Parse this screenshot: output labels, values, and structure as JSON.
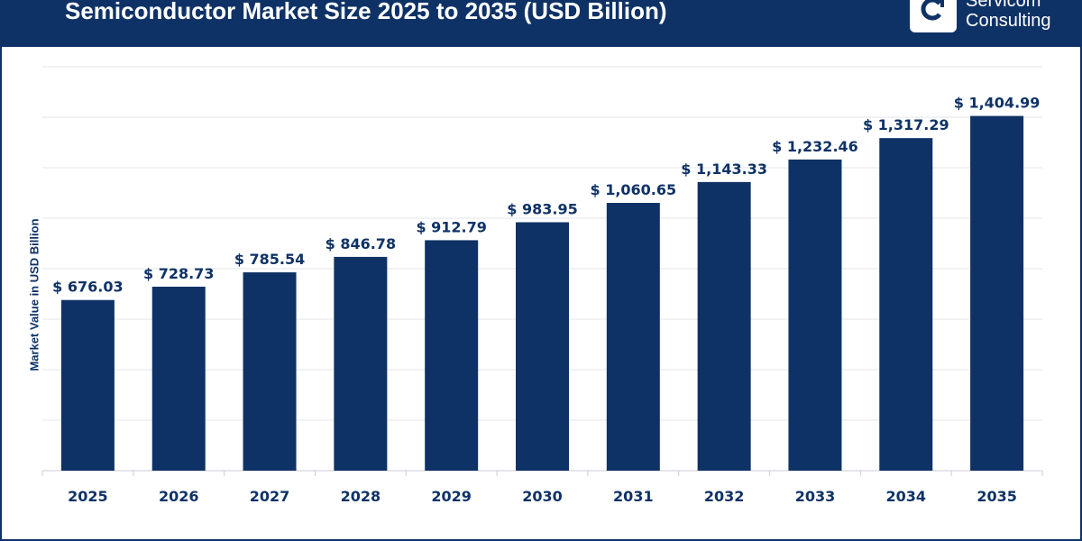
{
  "header": {
    "title": "Semiconductor Market Size 2025 to 2035 (USD Billion)",
    "logo_line1": "Servicom",
    "logo_line2": "Consulting",
    "logo_icon": "c-arrow-logo-icon"
  },
  "colors": {
    "header_bg": "#0f3266",
    "bar": "#0f3266",
    "grid": "#e3e6ea",
    "text": "#0f3266"
  },
  "chart_data": {
    "type": "bar",
    "title": "Semiconductor Market Size 2025 to 2035 (USD Billion)",
    "xlabel": "",
    "ylabel": "Market Value in USD Billion",
    "categories": [
      "2025",
      "2026",
      "2027",
      "2028",
      "2029",
      "2030",
      "2031",
      "2032",
      "2033",
      "2034",
      "2035"
    ],
    "values": [
      676.03,
      728.73,
      785.54,
      846.78,
      912.79,
      983.95,
      1060.65,
      1143.33,
      1232.46,
      1317.29,
      1404.99
    ],
    "data_labels": [
      "$ 676.03",
      "$ 728.73",
      "$ 785.54",
      "$ 846.78",
      "$ 912.79",
      "$ 983.95",
      "$ 1,060.65",
      "$ 1,143.33",
      "$ 1,232.46",
      "$ 1,317.29",
      "$ 1,404.99"
    ],
    "ylim": [
      0,
      1600
    ],
    "y_tick_step": 200,
    "grid": true,
    "legend": "none"
  }
}
